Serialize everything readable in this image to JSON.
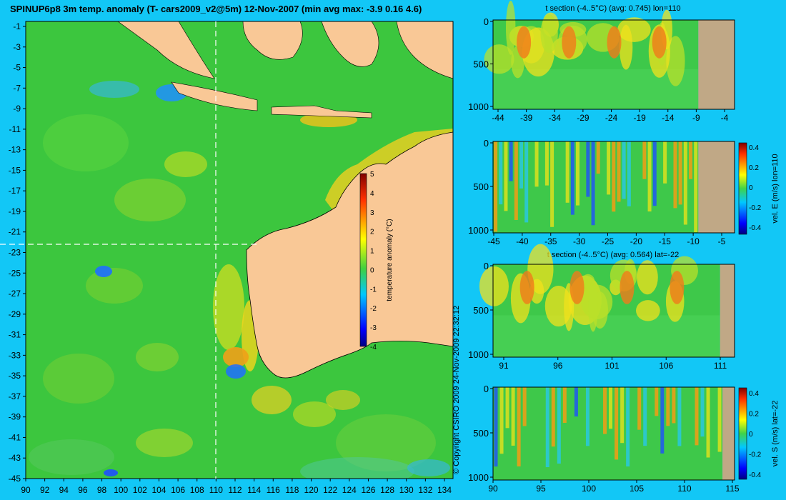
{
  "title": "SPINUP6p8 3m temp. anomaly (T- cars2009_v2@5m) 12-Nov-2007 (min avg max: -3.9 0.16 4.6)",
  "copyright": "© Copyright CSIRO 2009   24-Nov-2009 22:32:12",
  "colors": {
    "background": "#12c7f6",
    "land": "#f9c896",
    "section_land": "#c0a886",
    "ocean": "#2fbf3a"
  },
  "chart_data": [
    {
      "type": "heatmap",
      "name": "map",
      "xticks": [
        "90",
        "92",
        "94",
        "96",
        "98",
        "100",
        "102",
        "104",
        "106",
        "108",
        "110",
        "112",
        "114",
        "116",
        "118",
        "120",
        "122",
        "124",
        "126",
        "128",
        "130",
        "132",
        "134"
      ],
      "yticks": [
        "-1",
        "-3",
        "-5",
        "-7",
        "-9",
        "-11",
        "-13",
        "-15",
        "-17",
        "-19",
        "-21",
        "-23",
        "-25",
        "-27",
        "-29",
        "-31",
        "-33",
        "-35",
        "-37",
        "-39",
        "-41",
        "-43",
        "-45"
      ],
      "xlim": [
        90,
        135
      ],
      "ylim": [
        -45,
        0
      ],
      "section_lon": 110,
      "section_lat": -22,
      "colorbar": {
        "label": "temperature anomaly (°C)",
        "ticks": [
          "5",
          "4",
          "3",
          "2",
          "1",
          "0",
          "-1",
          "-2",
          "-3",
          "-4"
        ],
        "range": [
          -4,
          5
        ]
      }
    },
    {
      "type": "heatmap",
      "name": "t-section-lon",
      "title": "t section (-4..5°C) (avg: 0.745) lon=110",
      "xticks": [
        "-44",
        "-39",
        "-34",
        "-29",
        "-24",
        "-19",
        "-14",
        "-9",
        "-4"
      ],
      "yticks": [
        "0",
        "500",
        "1000"
      ],
      "ylim": [
        1050,
        0
      ]
    },
    {
      "type": "heatmap",
      "name": "velE-section-lon",
      "xticks": [
        "-45",
        "-40",
        "-35",
        "-30",
        "-25",
        "-20",
        "-15",
        "-10",
        "-5"
      ],
      "yticks": [
        "0",
        "500",
        "1000"
      ],
      "colorbar": {
        "label": "vel. E (m/s) lon=110",
        "ticks": [
          "0.4",
          "0.2",
          "0",
          "-0.2",
          "-0.4"
        ],
        "range": [
          -0.45,
          0.45
        ]
      }
    },
    {
      "type": "heatmap",
      "name": "t-section-lat",
      "title": "t section (-4..5°C) (avg: 0.564) lat=-22",
      "xticks": [
        "91",
        "96",
        "101",
        "106",
        "111"
      ],
      "yticks": [
        "0",
        "500",
        "1000"
      ]
    },
    {
      "type": "heatmap",
      "name": "velS-section-lat",
      "xticks": [
        "90",
        "95",
        "100",
        "105",
        "110",
        "115"
      ],
      "yticks": [
        "0",
        "500",
        "1000"
      ],
      "colorbar": {
        "label": "vel. S (m/s) lat=-22",
        "ticks": [
          "0.4",
          "0.2",
          "0",
          "-0.2",
          "-0.4"
        ],
        "range": [
          -0.45,
          0.45
        ]
      }
    }
  ]
}
